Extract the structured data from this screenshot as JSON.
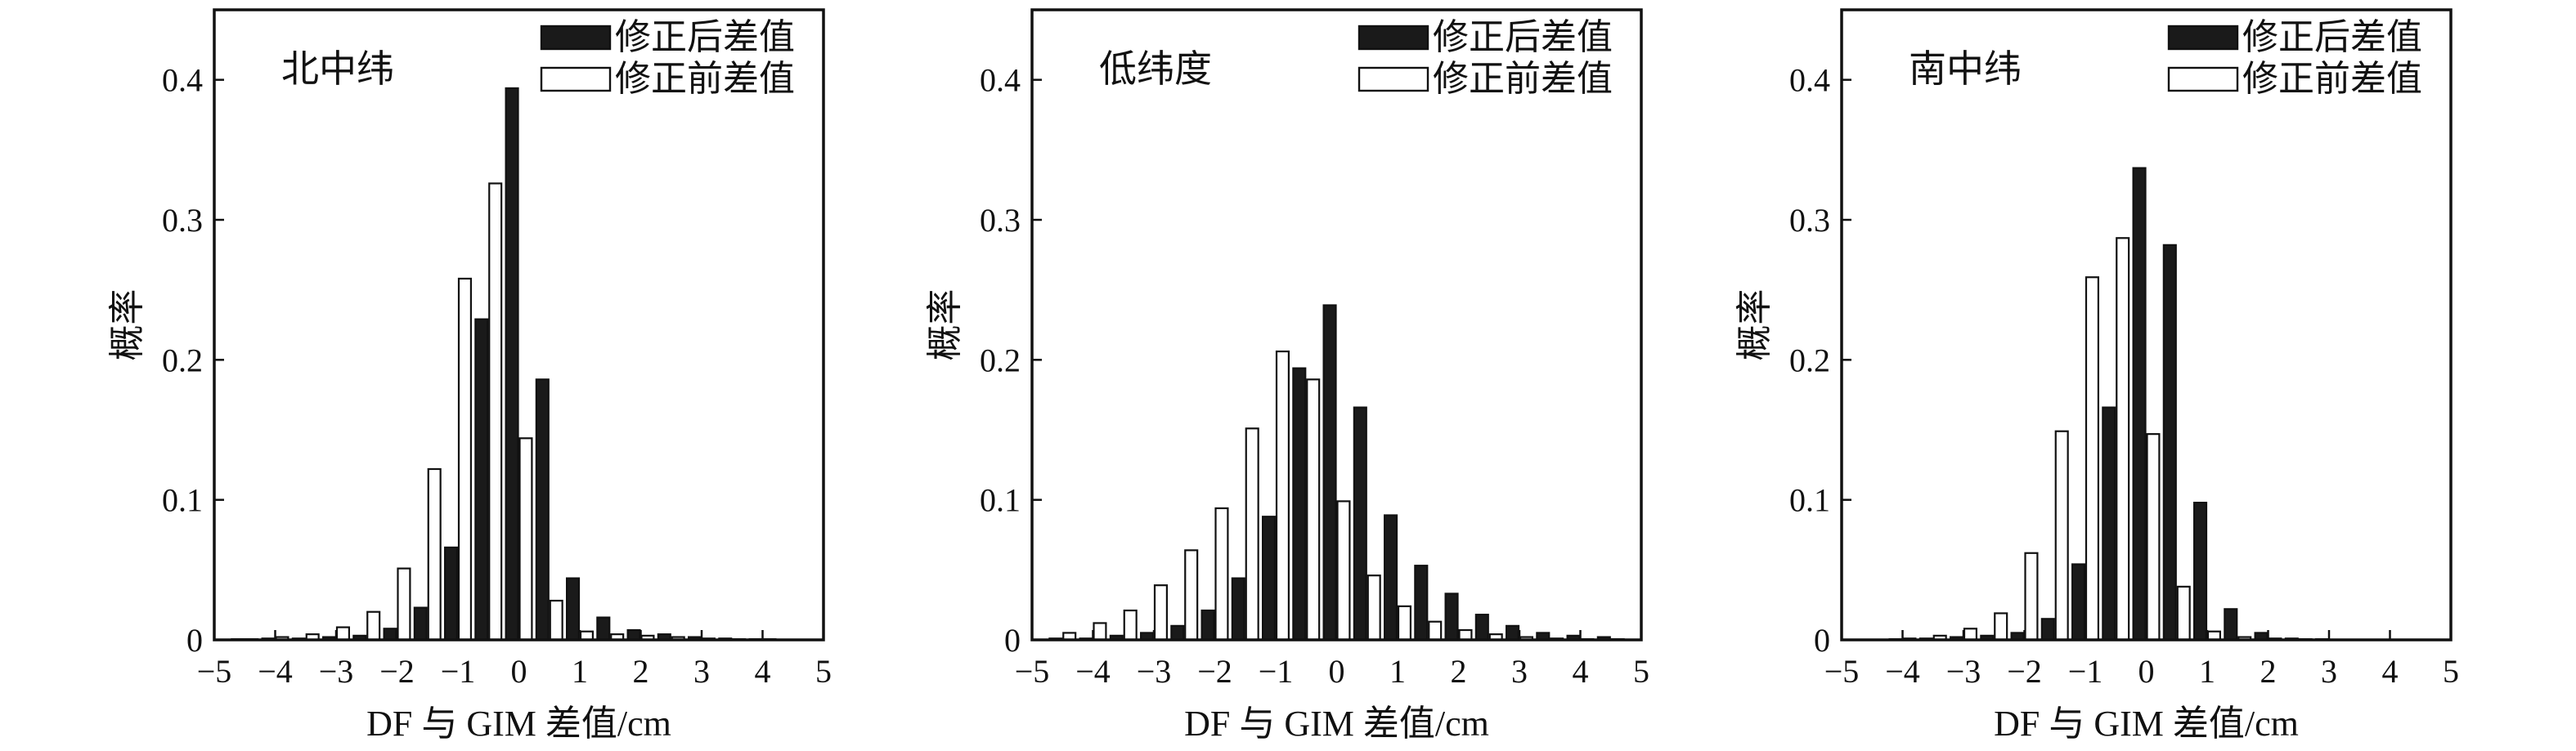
{
  "chart_data": [
    {
      "type": "bar",
      "title": "北中纬",
      "xlabel": "DF 与 GIM 差值/cm",
      "ylabel": "概率",
      "xlim": [
        -5,
        5
      ],
      "ylim": [
        0,
        0.45
      ],
      "xticks": [
        -5,
        -4,
        -3,
        -2,
        -1,
        0,
        1,
        2,
        3,
        4,
        5
      ],
      "yticks": [
        0,
        0.1,
        0.2,
        0.3,
        0.4
      ],
      "xtick_labels": [
        "−5",
        "−4",
        "−3",
        "−2",
        "−1",
        "0",
        "1",
        "2",
        "3",
        "4",
        "5"
      ],
      "ytick_labels": [
        "0",
        "0.1",
        "0.2",
        "0.3",
        "0.4"
      ],
      "legend_position": "top-right",
      "grid": false,
      "x": [
        -4.5,
        -4.0,
        -3.5,
        -3.0,
        -2.5,
        -2.0,
        -1.5,
        -1.0,
        -0.5,
        0.0,
        0.5,
        1.0,
        1.5,
        2.0,
        2.5,
        3.0,
        3.5,
        4.0,
        4.5
      ],
      "series": [
        {
          "name": "修正后差值",
          "color": "#1a1a1a",
          "fill": "solid",
          "values": [
            0.0005,
            0.001,
            0.001,
            0.002,
            0.003,
            0.008,
            0.023,
            0.066,
            0.229,
            0.394,
            0.186,
            0.044,
            0.016,
            0.007,
            0.004,
            0.002,
            0.001,
            0.0005,
            0.0
          ]
        },
        {
          "name": "修正前差值",
          "color": "#ffffff",
          "fill": "outline",
          "values": [
            0.0005,
            0.002,
            0.004,
            0.009,
            0.02,
            0.051,
            0.122,
            0.258,
            0.326,
            0.144,
            0.028,
            0.006,
            0.004,
            0.003,
            0.002,
            0.001,
            0.0005,
            0.0005,
            0.0
          ]
        }
      ]
    },
    {
      "type": "bar",
      "title": "低纬度",
      "xlabel": "DF 与 GIM 差值/cm",
      "ylabel": "概率",
      "xlim": [
        -5,
        5
      ],
      "ylim": [
        0,
        0.45
      ],
      "xticks": [
        -5,
        -4,
        -3,
        -2,
        -1,
        0,
        1,
        2,
        3,
        4,
        5
      ],
      "yticks": [
        0,
        0.1,
        0.2,
        0.3,
        0.4
      ],
      "xtick_labels": [
        "−5",
        "−4",
        "−3",
        "−2",
        "−1",
        "0",
        "1",
        "2",
        "3",
        "4",
        "5"
      ],
      "ytick_labels": [
        "0",
        "0.1",
        "0.2",
        "0.3",
        "0.4"
      ],
      "legend_position": "top-right",
      "grid": false,
      "x": [
        -4.5,
        -4.0,
        -3.5,
        -3.0,
        -2.5,
        -2.0,
        -1.5,
        -1.0,
        -0.5,
        0.0,
        0.5,
        1.0,
        1.5,
        2.0,
        2.5,
        3.0,
        3.5,
        4.0,
        4.5
      ],
      "series": [
        {
          "name": "修正后差值",
          "color": "#1a1a1a",
          "fill": "solid",
          "values": [
            0.001,
            0.001,
            0.003,
            0.005,
            0.01,
            0.021,
            0.044,
            0.088,
            0.194,
            0.239,
            0.166,
            0.089,
            0.053,
            0.033,
            0.018,
            0.01,
            0.005,
            0.003,
            0.002
          ]
        },
        {
          "name": "修正前差值",
          "color": "#ffffff",
          "fill": "outline",
          "values": [
            0.005,
            0.012,
            0.021,
            0.039,
            0.064,
            0.094,
            0.151,
            0.206,
            0.186,
            0.099,
            0.046,
            0.024,
            0.013,
            0.007,
            0.004,
            0.002,
            0.001,
            0.0005,
            0.0005
          ]
        }
      ]
    },
    {
      "type": "bar",
      "title": "南中纬",
      "xlabel": "DF 与 GIM 差值/cm",
      "ylabel": "概率",
      "xlim": [
        -5,
        5
      ],
      "ylim": [
        0,
        0.45
      ],
      "xticks": [
        -5,
        -4,
        -3,
        -2,
        -1,
        0,
        1,
        2,
        3,
        4,
        5
      ],
      "yticks": [
        0,
        0.1,
        0.2,
        0.3,
        0.4
      ],
      "xtick_labels": [
        "−5",
        "−4",
        "−3",
        "−2",
        "−1",
        "0",
        "1",
        "2",
        "3",
        "4",
        "5"
      ],
      "ytick_labels": [
        "0",
        "0.1",
        "0.2",
        "0.3",
        "0.4"
      ],
      "legend_position": "top-right",
      "grid": false,
      "x": [
        -4.5,
        -4.0,
        -3.5,
        -3.0,
        -2.5,
        -2.0,
        -1.5,
        -1.0,
        -0.5,
        0.0,
        0.5,
        1.0,
        1.5,
        2.0,
        2.5,
        3.0,
        3.5,
        4.0,
        4.5
      ],
      "series": [
        {
          "name": "修正后差值",
          "color": "#1a1a1a",
          "fill": "solid",
          "values": [
            0.0,
            0.0005,
            0.001,
            0.002,
            0.003,
            0.005,
            0.015,
            0.054,
            0.166,
            0.337,
            0.282,
            0.098,
            0.022,
            0.005,
            0.001,
            0.0005,
            0.0,
            0.0,
            0.0
          ]
        },
        {
          "name": "修正前差值",
          "color": "#ffffff",
          "fill": "outline",
          "values": [
            0.0,
            0.001,
            0.003,
            0.008,
            0.019,
            0.062,
            0.149,
            0.259,
            0.287,
            0.147,
            0.038,
            0.006,
            0.002,
            0.001,
            0.0005,
            0.0,
            0.0,
            0.0,
            0.0
          ]
        }
      ]
    }
  ]
}
